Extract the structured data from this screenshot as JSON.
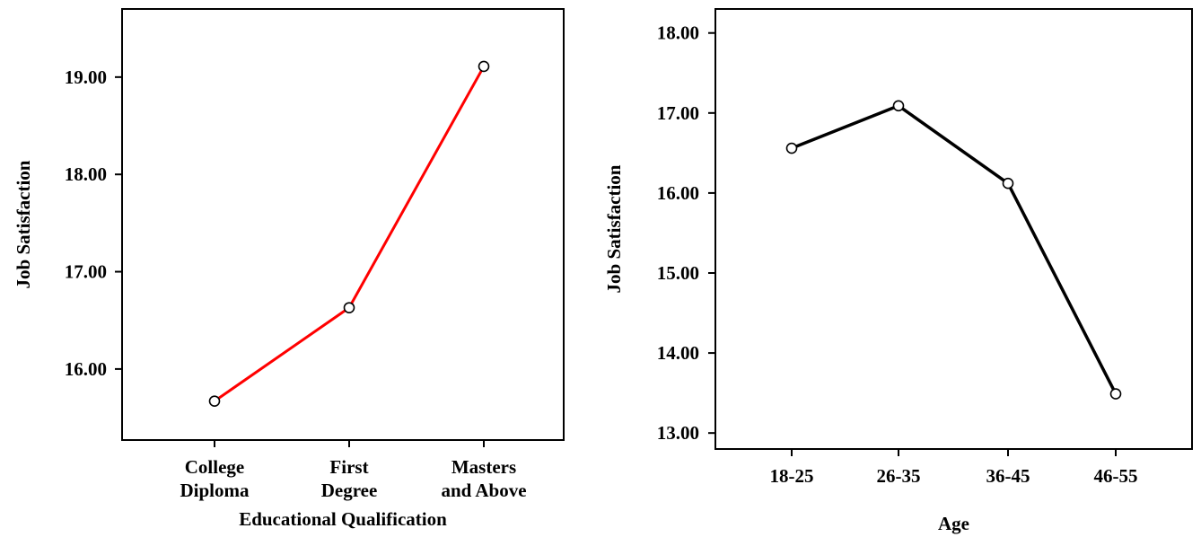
{
  "chart_data": [
    {
      "type": "line",
      "title": "",
      "xlabel": "Educational Qualification",
      "ylabel": "Job Satisfaction",
      "categories": [
        [
          "College",
          "Diploma"
        ],
        [
          "First",
          "Degree"
        ],
        [
          "Masters",
          "and Above"
        ]
      ],
      "values": [
        15.67,
        16.63,
        19.11
      ],
      "ylim": [
        15.27,
        19.7
      ],
      "yticks": [
        16.0,
        17.0,
        18.0,
        19.0
      ],
      "ytick_labels": [
        "16.00",
        "17.00",
        "18.00",
        "19.00"
      ],
      "line_color": "#ff0000",
      "marker": "open-circle",
      "grid": false
    },
    {
      "type": "line",
      "title": "",
      "xlabel": "Age",
      "ylabel": "Job Satisfaction",
      "categories": [
        [
          "18-25"
        ],
        [
          "26-35"
        ],
        [
          "36-45"
        ],
        [
          "46-55"
        ]
      ],
      "values": [
        16.56,
        17.09,
        16.12,
        13.49
      ],
      "ylim": [
        12.8,
        18.3
      ],
      "yticks": [
        13.0,
        14.0,
        15.0,
        16.0,
        17.0,
        18.0
      ],
      "ytick_labels": [
        "13.00",
        "14.00",
        "15.00",
        "16.00",
        "17.00",
        "18.00"
      ],
      "line_color": "#000000",
      "marker": "open-circle",
      "grid": false
    }
  ]
}
